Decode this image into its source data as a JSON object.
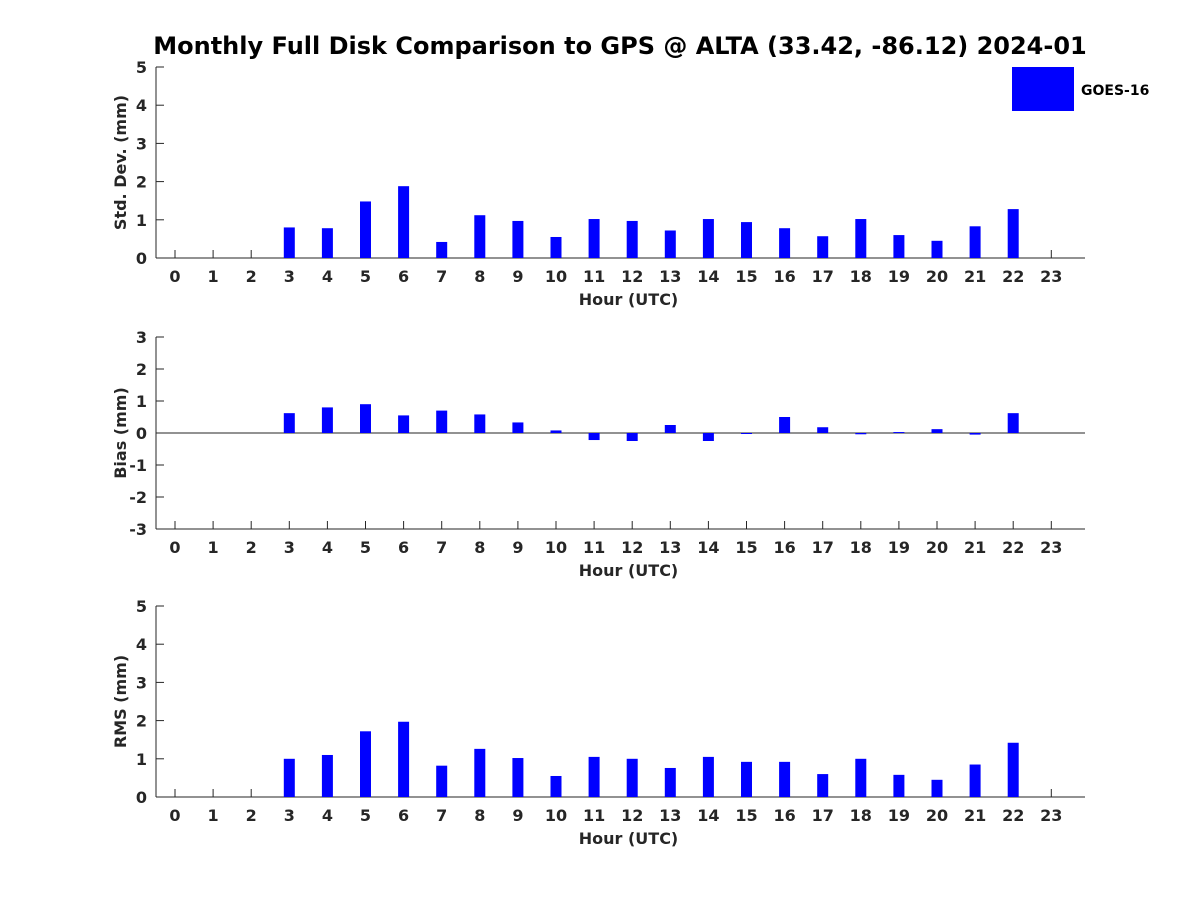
{
  "title": "Monthly Full Disk Comparison to GPS @ ALTA (33.42, -86.12) 2024-01",
  "legend": {
    "label": "GOES-16",
    "color": "#0000ff"
  },
  "chart_data": [
    {
      "type": "bar",
      "name": "std-dev",
      "title": "Monthly Full Disk Comparison to GPS @ ALTA (33.42, -86.12) 2024-01",
      "xlabel": "Hour (UTC)",
      "ylabel": "Std. Dev. (mm)",
      "ylim": [
        0,
        5
      ],
      "yticks": [
        0,
        1,
        2,
        3,
        4,
        5
      ],
      "categories": [
        0,
        1,
        2,
        3,
        4,
        5,
        6,
        7,
        8,
        9,
        10,
        11,
        12,
        13,
        14,
        15,
        16,
        17,
        18,
        19,
        20,
        21,
        22,
        23
      ],
      "series": [
        {
          "name": "GOES-16",
          "color": "#0000ff",
          "values": [
            null,
            null,
            null,
            0.8,
            0.78,
            1.48,
            1.88,
            0.42,
            1.12,
            0.97,
            0.55,
            1.02,
            0.97,
            0.72,
            1.02,
            0.94,
            0.78,
            0.57,
            1.02,
            0.6,
            0.45,
            0.83,
            1.28,
            null
          ]
        }
      ]
    },
    {
      "type": "bar",
      "name": "bias",
      "xlabel": "Hour (UTC)",
      "ylabel": "Bias (mm)",
      "ylim": [
        -3,
        3
      ],
      "yticks": [
        -3,
        -2,
        -1,
        0,
        1,
        2,
        3
      ],
      "zero_line": true,
      "categories": [
        0,
        1,
        2,
        3,
        4,
        5,
        6,
        7,
        8,
        9,
        10,
        11,
        12,
        13,
        14,
        15,
        16,
        17,
        18,
        19,
        20,
        21,
        22,
        23
      ],
      "series": [
        {
          "name": "GOES-16",
          "color": "#0000ff",
          "values": [
            null,
            null,
            null,
            0.62,
            0.8,
            0.9,
            0.55,
            0.7,
            0.58,
            0.33,
            0.08,
            -0.22,
            -0.25,
            0.25,
            -0.25,
            0.0,
            0.5,
            0.18,
            -0.04,
            0.03,
            0.12,
            -0.05,
            0.62,
            null
          ]
        }
      ]
    },
    {
      "type": "bar",
      "name": "rms",
      "xlabel": "Hour (UTC)",
      "ylabel": "RMS (mm)",
      "ylim": [
        0,
        5
      ],
      "yticks": [
        0,
        1,
        2,
        3,
        4,
        5
      ],
      "categories": [
        0,
        1,
        2,
        3,
        4,
        5,
        6,
        7,
        8,
        9,
        10,
        11,
        12,
        13,
        14,
        15,
        16,
        17,
        18,
        19,
        20,
        21,
        22,
        23
      ],
      "series": [
        {
          "name": "GOES-16",
          "color": "#0000ff",
          "values": [
            null,
            null,
            null,
            1.0,
            1.1,
            1.72,
            1.97,
            0.82,
            1.26,
            1.02,
            0.55,
            1.05,
            1.0,
            0.76,
            1.05,
            0.92,
            0.92,
            0.6,
            1.0,
            0.58,
            0.45,
            0.85,
            1.42,
            null
          ]
        }
      ]
    }
  ]
}
